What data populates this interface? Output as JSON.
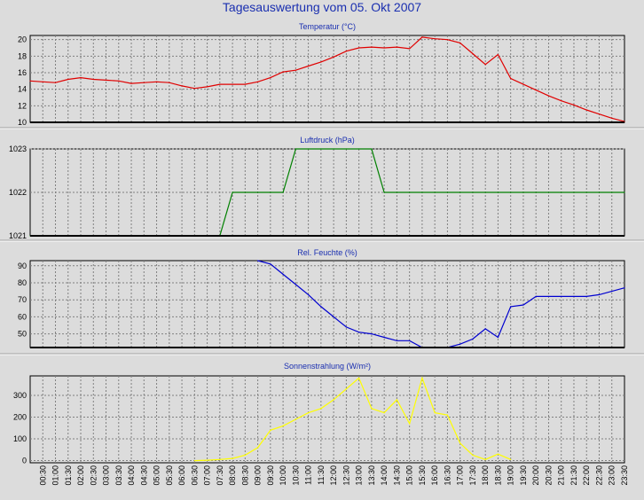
{
  "page": {
    "title": "Tagesauswertung vom 05. Okt 2007"
  },
  "chart_data": [
    {
      "type": "line",
      "title": "Temperatur (°C)",
      "color": "#e00000",
      "ylim": [
        10,
        20.5
      ],
      "yticks": [
        10,
        12,
        14,
        16,
        18,
        20
      ],
      "grid": true,
      "x": [
        "00:00",
        "00:30",
        "01:00",
        "01:30",
        "02:00",
        "02:30",
        "03:00",
        "03:30",
        "04:00",
        "04:30",
        "05:00",
        "05:30",
        "06:00",
        "06:30",
        "07:00",
        "07:30",
        "08:00",
        "08:30",
        "09:00",
        "09:30",
        "10:00",
        "10:30",
        "11:00",
        "11:30",
        "12:00",
        "12:30",
        "13:00",
        "13:30",
        "14:00",
        "14:30",
        "15:00",
        "15:30",
        "16:00",
        "16:30",
        "17:00",
        "17:30",
        "18:00",
        "18:30",
        "19:00",
        "19:30",
        "20:00",
        "20:30",
        "21:00",
        "21:30",
        "22:00",
        "22:30",
        "23:00",
        "23:30"
      ],
      "values": [
        15.0,
        14.9,
        14.8,
        15.2,
        15.4,
        15.2,
        15.1,
        15.0,
        14.7,
        14.8,
        14.9,
        14.8,
        14.4,
        14.1,
        14.3,
        14.6,
        14.6,
        14.6,
        14.9,
        15.4,
        16.1,
        16.3,
        16.8,
        17.3,
        17.9,
        18.6,
        19.0,
        19.1,
        19.0,
        19.1,
        18.9,
        20.3,
        20.1,
        20.0,
        19.6,
        18.3,
        17.0,
        18.2,
        15.3,
        14.6,
        13.9,
        13.2,
        12.6,
        12.1,
        11.5,
        11.0,
        10.5,
        10.1
      ]
    },
    {
      "type": "line",
      "title": "Luftdruck (hPa)",
      "color": "#008000",
      "ylim": [
        1021,
        1023
      ],
      "yticks": [
        1021,
        1022,
        1023
      ],
      "grid": true,
      "x": [
        "00:00",
        "00:30",
        "01:00",
        "01:30",
        "02:00",
        "02:30",
        "03:00",
        "03:30",
        "04:00",
        "04:30",
        "05:00",
        "05:30",
        "06:00",
        "06:30",
        "07:00",
        "07:30",
        "08:00",
        "08:30",
        "09:00",
        "09:30",
        "10:00",
        "10:30",
        "11:00",
        "11:30",
        "12:00",
        "12:30",
        "13:00",
        "13:30",
        "14:00",
        "14:30",
        "15:00",
        "15:30",
        "16:00",
        "16:30",
        "17:00",
        "17:30",
        "18:00",
        "18:30",
        "19:00",
        "19:30",
        "20:00",
        "20:30",
        "21:00",
        "21:30",
        "22:00",
        "22:30",
        "23:00",
        "23:30"
      ],
      "values": [
        1021,
        1021,
        1021,
        1021,
        1021,
        1021,
        1021,
        1021,
        1021,
        1021,
        1021,
        1021,
        1021,
        1021,
        1021,
        1021,
        1022,
        1022,
        1022,
        1022,
        1022,
        1023,
        1023,
        1023,
        1023,
        1023,
        1023,
        1023,
        1022,
        1022,
        1022,
        1022,
        1022,
        1022,
        1022,
        1022,
        1022,
        1022,
        1022,
        1022,
        1022,
        1022,
        1022,
        1022,
        1022,
        1022,
        1022,
        1022
      ]
    },
    {
      "type": "line",
      "title": "Rel. Feuchte (%)",
      "color": "#0000d0",
      "ylim": [
        42,
        93
      ],
      "yticks": [
        50,
        60,
        70,
        80,
        90
      ],
      "grid": true,
      "x": [
        "09:00",
        "09:30",
        "10:00",
        "10:30",
        "11:00",
        "11:30",
        "12:00",
        "12:30",
        "13:00",
        "13:30",
        "14:00",
        "14:30",
        "15:00",
        "15:30",
        "16:00",
        "16:30",
        "17:00",
        "17:30",
        "18:00",
        "18:30",
        "19:00",
        "19:30",
        "20:00",
        "20:30",
        "21:00",
        "21:30",
        "22:00",
        "22:30",
        "23:00",
        "23:30"
      ],
      "values": [
        93,
        91,
        85,
        79,
        73,
        66,
        60,
        54,
        51,
        50,
        48,
        46,
        46,
        42,
        42,
        42,
        44,
        47,
        53,
        48,
        66,
        67,
        72,
        72,
        72,
        72,
        72,
        73,
        75,
        77
      ]
    },
    {
      "type": "line",
      "title": "Sonnenstrahlung (W/m²)",
      "color": "#ffff00",
      "ylim": [
        -10,
        390
      ],
      "yticks": [
        0,
        100,
        200,
        300
      ],
      "grid": true,
      "x": [
        "06:30",
        "07:00",
        "07:30",
        "08:00",
        "08:30",
        "09:00",
        "09:30",
        "10:00",
        "10:30",
        "11:00",
        "11:30",
        "12:00",
        "12:30",
        "13:00",
        "13:30",
        "14:00",
        "14:30",
        "15:00",
        "15:30",
        "16:00",
        "16:30",
        "17:00",
        "17:30",
        "18:00",
        "18:30",
        "19:00"
      ],
      "values": [
        0,
        2,
        5,
        10,
        25,
        60,
        140,
        160,
        190,
        220,
        240,
        280,
        330,
        380,
        240,
        220,
        280,
        170,
        380,
        220,
        210,
        80,
        25,
        5,
        30,
        5
      ]
    }
  ],
  "x_tick_labels": [
    "00:30",
    "01:00",
    "01:30",
    "02:00",
    "02:30",
    "03:00",
    "03:30",
    "04:00",
    "04:30",
    "05:00",
    "05:30",
    "06:00",
    "06:30",
    "07:00",
    "07:30",
    "08:00",
    "08:30",
    "09:00",
    "09:30",
    "10:00",
    "10:30",
    "11:00",
    "11:30",
    "12:00",
    "12:30",
    "13:00",
    "13:30",
    "14:00",
    "14:30",
    "15:00",
    "15:30",
    "16:00",
    "16:30",
    "17:00",
    "17:30",
    "18:00",
    "18:30",
    "19:00",
    "19:30",
    "20:00",
    "20:30",
    "21:00",
    "21:30",
    "22:00",
    "22:30",
    "23:00",
    "23:30"
  ]
}
